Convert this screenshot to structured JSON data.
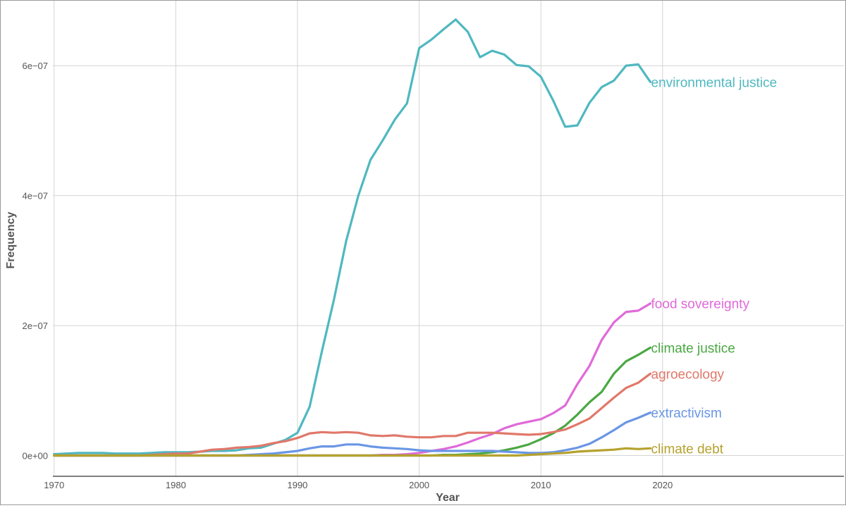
{
  "chart_data": {
    "type": "line",
    "title": "",
    "xlabel": "Year",
    "ylabel": "Frequency",
    "xlim": [
      1969.9,
      2034.9
    ],
    "ylim": [
      -3.2e-08,
      7e-07
    ],
    "x_ticks": [
      1970,
      1980,
      1990,
      2000,
      2010,
      2020
    ],
    "x_tick_labels": [
      "1970",
      "1980",
      "1990",
      "2000",
      "2010",
      "2020"
    ],
    "y_ticks": [
      0,
      2e-07,
      4e-07,
      6e-07
    ],
    "y_tick_labels": [
      "0e+00",
      "2e−07",
      "4e−07",
      "6e−07"
    ],
    "grid": true,
    "legend": "direct labels at line ends",
    "x": [
      1970,
      1971,
      1972,
      1973,
      1974,
      1975,
      1976,
      1977,
      1978,
      1979,
      1980,
      1981,
      1982,
      1983,
      1984,
      1985,
      1986,
      1987,
      1988,
      1989,
      1990,
      1991,
      1992,
      1993,
      1994,
      1995,
      1996,
      1997,
      1998,
      1999,
      2000,
      2001,
      2002,
      2003,
      2004,
      2005,
      2006,
      2007,
      2008,
      2009,
      2010,
      2011,
      2012,
      2013,
      2014,
      2015,
      2016,
      2017,
      2018,
      2019
    ],
    "series": [
      {
        "name": "environmental justice",
        "color": "#4fb8c0",
        "values": [
          2e-09,
          3e-09,
          4e-09,
          4e-09,
          4e-09,
          3e-09,
          3e-09,
          3e-09,
          4e-09,
          5e-09,
          5e-09,
          5e-09,
          6e-09,
          7e-09,
          7e-09,
          8e-09,
          1.1e-08,
          1.2e-08,
          1.8e-08,
          2.4e-08,
          3.5e-08,
          7.5e-08,
          1.6e-07,
          2.4e-07,
          3.3e-07,
          4e-07,
          4.55e-07,
          4.85e-07,
          5.17e-07,
          5.42e-07,
          6.27e-07,
          6.4e-07,
          6.56e-07,
          6.71e-07,
          6.52e-07,
          6.13e-07,
          6.23e-07,
          6.17e-07,
          6.01e-07,
          5.99e-07,
          5.83e-07,
          5.47e-07,
          5.06e-07,
          5.08e-07,
          5.43e-07,
          5.67e-07,
          5.77e-07,
          6e-07,
          6.02e-07,
          5.75e-07
        ]
      },
      {
        "name": "food sovereignty",
        "color": "#e06ad9",
        "values": [
          0,
          0,
          0,
          0,
          0,
          0,
          0,
          0,
          0,
          0,
          0,
          0,
          0,
          0,
          0,
          0,
          0,
          0,
          0,
          0,
          0,
          0,
          0,
          0,
          0,
          0,
          0,
          1e-09,
          1e-09,
          2e-09,
          4e-09,
          7e-09,
          1e-08,
          1.4e-08,
          2e-08,
          2.7e-08,
          3.3e-08,
          4.2e-08,
          4.8e-08,
          5.2e-08,
          5.6e-08,
          6.5e-08,
          7.7e-08,
          1.1e-07,
          1.38e-07,
          1.78e-07,
          2.05e-07,
          2.21e-07,
          2.23e-07,
          2.34e-07
        ]
      },
      {
        "name": "climate justice",
        "color": "#4aa843",
        "values": [
          0,
          0,
          0,
          0,
          0,
          0,
          0,
          0,
          0,
          0,
          0,
          0,
          0,
          0,
          0,
          0,
          0,
          0,
          0,
          0,
          0,
          0,
          0,
          0,
          0,
          0,
          0,
          0,
          0,
          0,
          0,
          0,
          1e-09,
          1e-09,
          2e-09,
          3e-09,
          5e-09,
          8e-09,
          1.2e-08,
          1.7e-08,
          2.5e-08,
          3.4e-08,
          4.6e-08,
          6.3e-08,
          8.2e-08,
          9.8e-08,
          1.26e-07,
          1.45e-07,
          1.55e-07,
          1.66e-07
        ]
      },
      {
        "name": "agroecology",
        "color": "#e0786a",
        "values": [
          0,
          0,
          0,
          0,
          0,
          0,
          0,
          0,
          1e-09,
          2e-09,
          3e-09,
          3e-09,
          6e-09,
          9e-09,
          1e-08,
          1.2e-08,
          1.3e-08,
          1.5e-08,
          1.9e-08,
          2.2e-08,
          2.7e-08,
          3.4e-08,
          3.6e-08,
          3.5e-08,
          3.6e-08,
          3.5e-08,
          3.1e-08,
          3e-08,
          3.1e-08,
          2.9e-08,
          2.8e-08,
          2.8e-08,
          3e-08,
          3e-08,
          3.5e-08,
          3.5e-08,
          3.5e-08,
          3.4e-08,
          3.3e-08,
          3.2e-08,
          3.3e-08,
          3.6e-08,
          4e-08,
          4.8e-08,
          5.7e-08,
          7.3e-08,
          8.9e-08,
          1.04e-07,
          1.12e-07,
          1.26e-07
        ]
      },
      {
        "name": "extractivism",
        "color": "#6a96e6",
        "values": [
          0,
          0,
          0,
          0,
          0,
          0,
          0,
          0,
          0,
          0,
          0,
          0,
          0,
          0,
          0,
          0,
          1e-09,
          2e-09,
          3e-09,
          5e-09,
          7e-09,
          1.1e-08,
          1.4e-08,
          1.4e-08,
          1.7e-08,
          1.7e-08,
          1.4e-08,
          1.2e-08,
          1.1e-08,
          1e-08,
          8e-09,
          7e-09,
          7e-09,
          7e-09,
          7e-09,
          7e-09,
          7e-09,
          6e-09,
          5e-09,
          4e-09,
          4e-09,
          5e-09,
          8e-09,
          1.2e-08,
          1.8e-08,
          2.8e-08,
          3.9e-08,
          5.1e-08,
          5.8e-08,
          6.6e-08
        ]
      },
      {
        "name": "climate debt",
        "color": "#b5a22e",
        "values": [
          0,
          0,
          0,
          0,
          0,
          0,
          0,
          0,
          0,
          0,
          0,
          0,
          0,
          0,
          0,
          0,
          0,
          0,
          0,
          0,
          0,
          0,
          0,
          0,
          0,
          0,
          0,
          0,
          0,
          0,
          0,
          0,
          0,
          0,
          0,
          0,
          0,
          0,
          0,
          1e-09,
          2e-09,
          3e-09,
          4e-09,
          6e-09,
          7e-09,
          8e-09,
          9e-09,
          1.1e-08,
          1e-08,
          1.1e-08
        ]
      }
    ]
  }
}
